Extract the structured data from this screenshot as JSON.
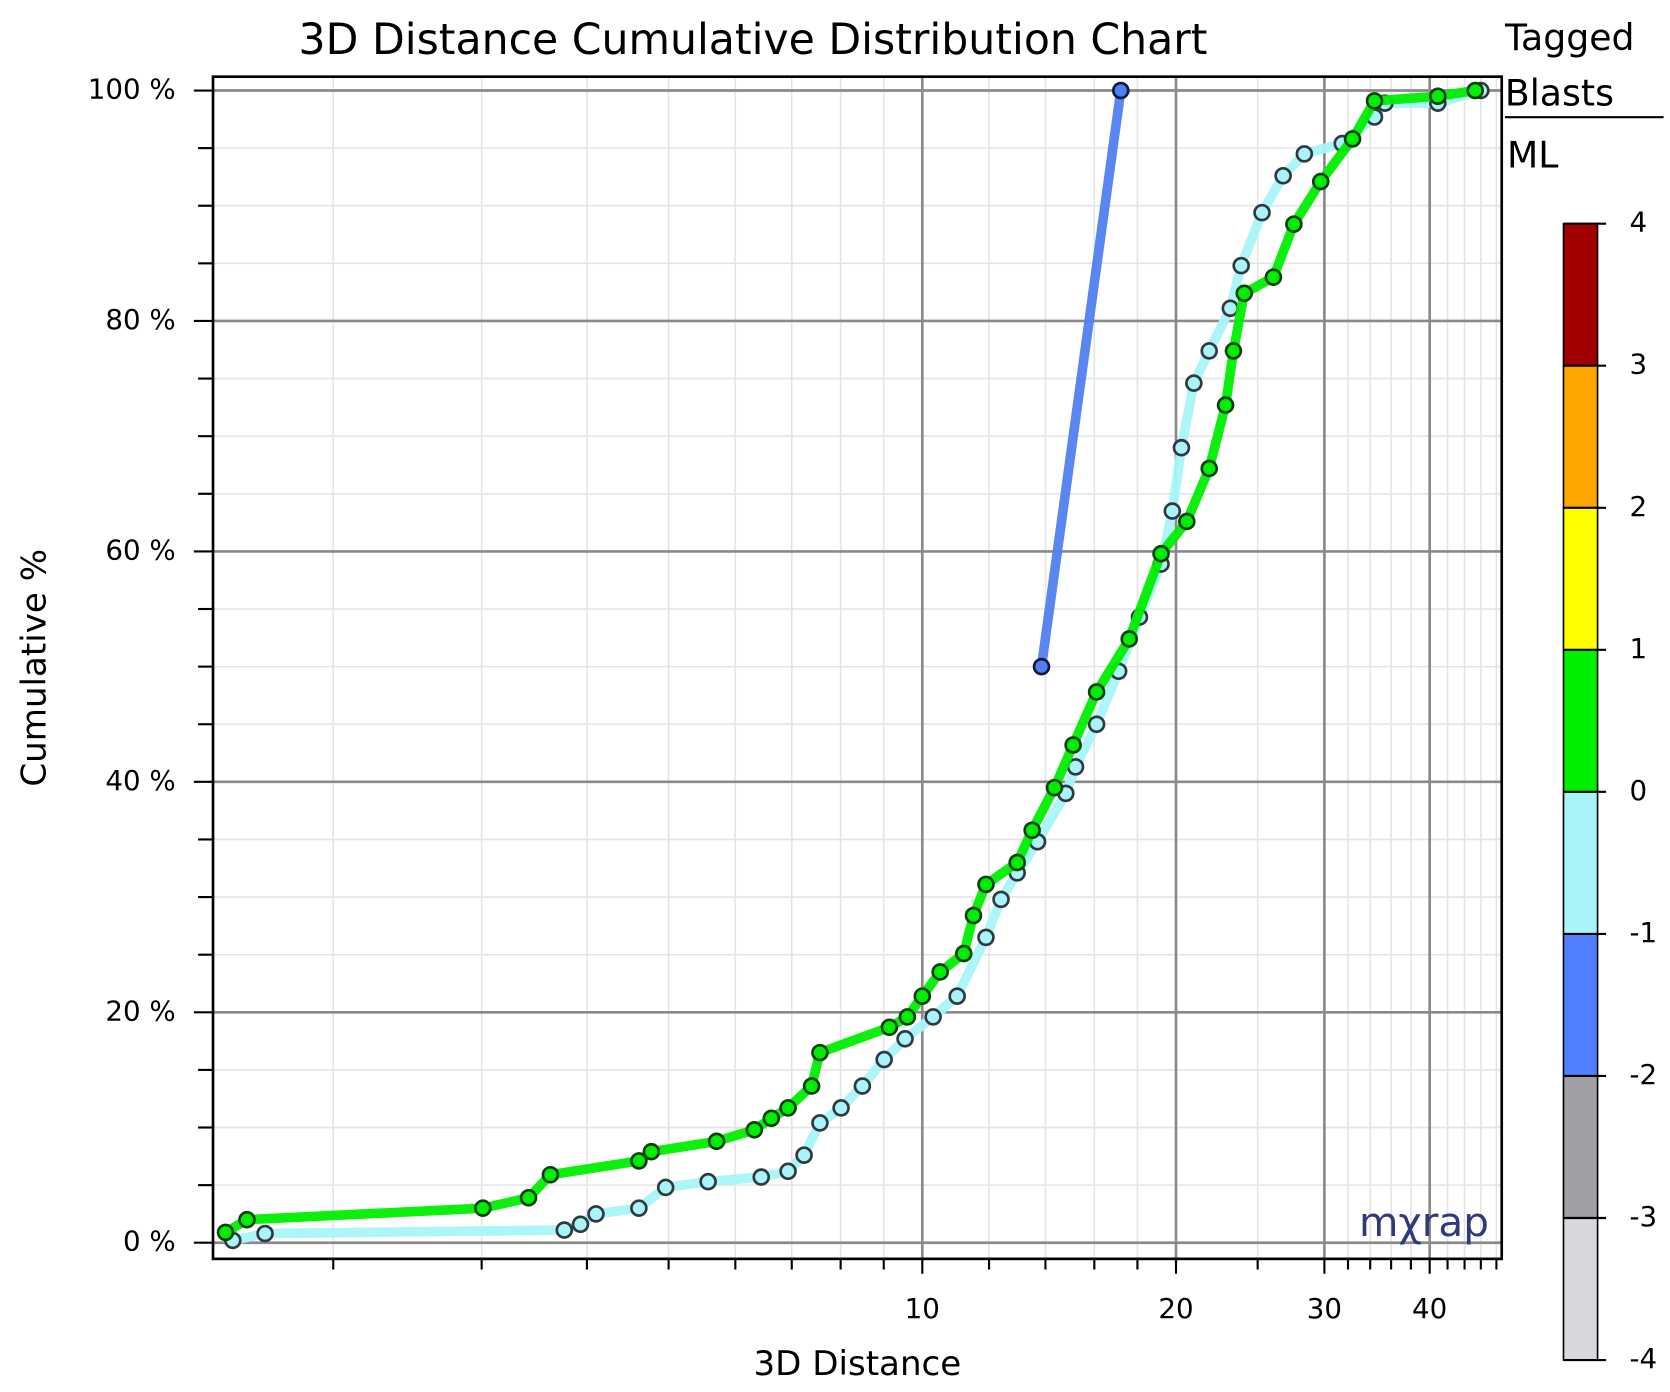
{
  "chart_data": {
    "type": "line",
    "title": "3D Distance Cumulative Distribution Chart",
    "x_label": "3D Distance",
    "y_label": "Cumulative %",
    "xscale": "log",
    "xlim": [
      1.44,
      48.7
    ],
    "ylim": [
      -1.4,
      101.2
    ],
    "xticks": [
      10,
      20,
      30,
      40
    ],
    "xminorticks": [
      2,
      3,
      4,
      5,
      6,
      7,
      8,
      9,
      12,
      14,
      16,
      18,
      25,
      32,
      34,
      36,
      38,
      42,
      44,
      46,
      48
    ],
    "yticks": [
      {
        "value": 0,
        "label": "0 %"
      },
      {
        "value": 20,
        "label": "20 %"
      },
      {
        "value": 40,
        "label": "40 %"
      },
      {
        "value": 60,
        "label": "60 %"
      },
      {
        "value": 80,
        "label": "80 %"
      },
      {
        "value": 100,
        "label": "100 %"
      }
    ],
    "yminorticks": [
      5,
      10,
      15,
      25,
      30,
      35,
      45,
      50,
      55,
      65,
      70,
      75,
      85,
      90,
      95
    ],
    "grid": true,
    "watermark": "mχrap",
    "series": [
      {
        "color": "#a8f4f8",
        "outline": "#303840",
        "x": [
          1.52,
          1.66,
          3.76,
          3.93,
          4.1,
          4.61,
          4.96,
          5.57,
          6.44,
          6.93,
          7.24,
          7.56,
          8.01,
          8.49,
          9.01,
          9.54,
          10.3,
          11.0,
          11.9,
          12.4,
          12.96,
          13.7,
          14.8,
          15.2,
          16.1,
          17.1,
          18.1,
          19.2,
          19.8,
          20.3,
          21.0,
          21.9,
          23.2,
          23.9,
          25.3,
          26.8,
          28.4,
          31.5,
          34.4,
          35.4,
          40.9,
          46.0
        ],
        "values": [
          0.2,
          0.8,
          1.1,
          1.6,
          2.5,
          3.0,
          4.8,
          5.3,
          5.7,
          6.2,
          7.6,
          10.4,
          11.7,
          13.6,
          15.9,
          17.7,
          19.6,
          21.4,
          26.5,
          29.8,
          32.1,
          34.8,
          39.0,
          41.3,
          45.0,
          49.6,
          54.3,
          58.9,
          63.5,
          69.0,
          74.6,
          77.4,
          81.1,
          84.8,
          89.4,
          92.6,
          94.5,
          95.4,
          97.7,
          98.9,
          98.9,
          100
        ]
      },
      {
        "color": "#00ee00",
        "outline": "#0a4010",
        "x": [
          1.49,
          1.58,
          3.01,
          3.41,
          3.62,
          4.61,
          4.77,
          5.7,
          6.32,
          6.62,
          6.93,
          7.39,
          7.56,
          9.14,
          9.6,
          10.0,
          10.5,
          11.2,
          11.5,
          11.9,
          12.96,
          13.5,
          14.35,
          15.1,
          16.1,
          17.6,
          19.2,
          20.6,
          21.9,
          22.9,
          23.4,
          24.1,
          26.1,
          27.6,
          29.7,
          32.4,
          34.4,
          40.9,
          45.3
        ],
        "values": [
          0.9,
          2.0,
          3.0,
          3.9,
          5.9,
          7.1,
          7.9,
          8.8,
          9.8,
          10.8,
          11.7,
          13.6,
          16.5,
          18.7,
          19.6,
          21.4,
          23.5,
          25.1,
          28.4,
          31.1,
          33.0,
          35.8,
          39.5,
          43.2,
          47.8,
          52.4,
          59.8,
          62.6,
          67.2,
          72.7,
          77.4,
          82.4,
          83.8,
          88.4,
          92.1,
          95.8,
          99.1,
          99.5,
          100
        ]
      },
      {
        "color": "#5080f0",
        "outline": "#101840",
        "x": [
          13.85,
          17.2
        ],
        "values": [
          50,
          100
        ]
      }
    ],
    "legend": {
      "title": "Tagged Blasts",
      "subtitle": "ML",
      "ticks": [
        4,
        3,
        2,
        1,
        0,
        -1,
        -2,
        -3,
        -4
      ],
      "colors": [
        "#a00000",
        "#ffa500",
        "#ffff00",
        "#00ee00",
        "#a8f4f8",
        "#5080ff",
        "#a0a0a4",
        "#d8d8dc"
      ]
    }
  }
}
